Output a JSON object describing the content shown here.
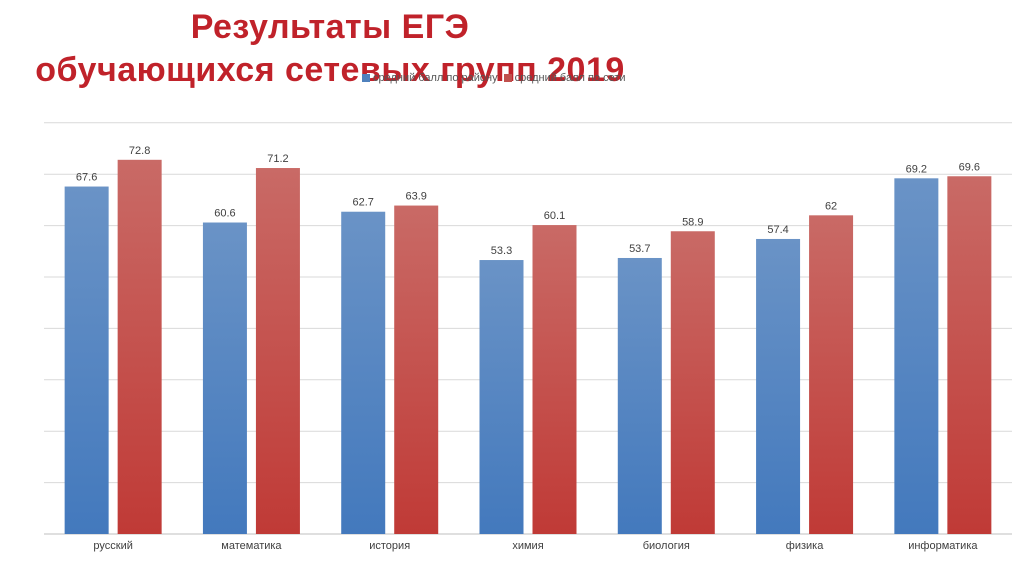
{
  "chart_data": {
    "type": "bar",
    "title_line1": "Результаты ЕГЭ",
    "title_line2": "обучающихся сетевых групп 2019",
    "categories": [
      "русский",
      "математика",
      "история",
      "химия",
      "биология",
      "физика",
      "информатика"
    ],
    "series": [
      {
        "name": "средний балл по району",
        "values": [
          67.6,
          60.6,
          62.7,
          53.3,
          53.7,
          57.4,
          69.2
        ]
      },
      {
        "name": "средний балл по сети",
        "values": [
          72.8,
          71.2,
          63.9,
          60.1,
          58.9,
          62,
          69.6
        ]
      }
    ],
    "ylim": [
      0,
      80
    ],
    "grid": true,
    "legend_position": "top",
    "colors": {
      "series_1": "#4f81bd",
      "series_2": "#c0504d",
      "title": "#c0222a",
      "grid": "#d9d9d9"
    }
  }
}
